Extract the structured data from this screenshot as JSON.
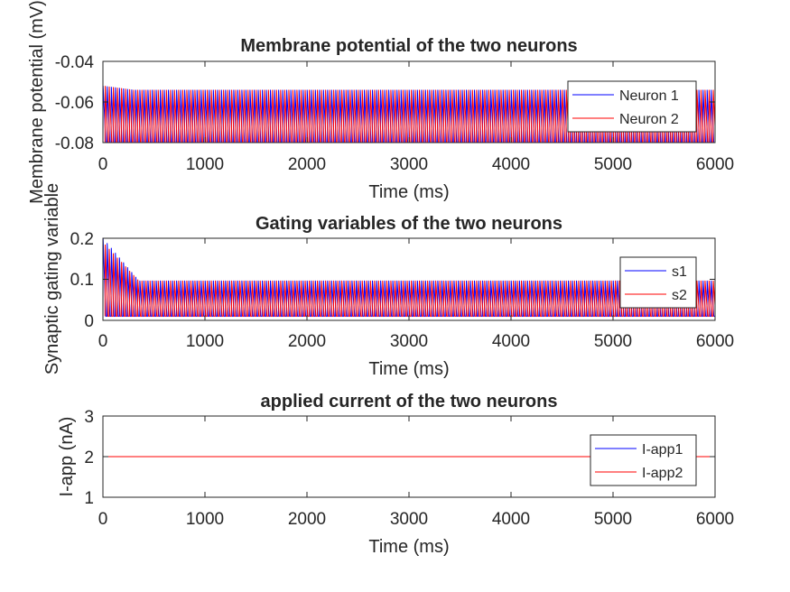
{
  "colors": {
    "series1": "#0000ff",
    "series2": "#ff0000",
    "axis": "#262626"
  },
  "chart_data": [
    {
      "type": "line",
      "title": "Membrane potential of the two neurons",
      "xlabel": "Time (ms)",
      "ylabel": "Membrane potential (mV)",
      "xlim": [
        0,
        6000
      ],
      "ylim": [
        -0.08,
        -0.04
      ],
      "xticks": [
        0,
        1000,
        2000,
        3000,
        4000,
        5000,
        6000
      ],
      "xtick_labels": [
        "0",
        "1000",
        "2000",
        "3000",
        "4000",
        "5000",
        "6000"
      ],
      "yticks": [
        -0.08,
        -0.06,
        -0.04
      ],
      "ytick_labels": [
        "-0.08",
        "-0.06",
        "-0.04"
      ],
      "grid": false,
      "legend_position": "top-right",
      "series": [
        {
          "name": "Neuron 1",
          "color": "#0000ff",
          "pattern": "oscillation",
          "period_ms": 40,
          "phase_ms": 0,
          "baseline": -0.08,
          "peak_initial": -0.052,
          "peak_steady": -0.054,
          "settle_ms": 300
        },
        {
          "name": "Neuron 2",
          "color": "#ff0000",
          "pattern": "oscillation",
          "period_ms": 40,
          "phase_ms": 20,
          "baseline": -0.08,
          "peak_initial": -0.052,
          "peak_steady": -0.054,
          "settle_ms": 300
        }
      ]
    },
    {
      "type": "line",
      "title": "Gating variables of the two neurons",
      "xlabel": "Time (ms)",
      "ylabel": "Synaptic gating variable",
      "xlim": [
        0,
        6000
      ],
      "ylim": [
        0,
        0.2
      ],
      "xticks": [
        0,
        1000,
        2000,
        3000,
        4000,
        5000,
        6000
      ],
      "xtick_labels": [
        "0",
        "1000",
        "2000",
        "3000",
        "4000",
        "5000",
        "6000"
      ],
      "yticks": [
        0,
        0.1,
        0.2
      ],
      "ytick_labels": [
        "0",
        "0.1",
        "0.2"
      ],
      "grid": false,
      "legend_position": "top-right",
      "series": [
        {
          "name": "s1",
          "color": "#0000ff",
          "pattern": "oscillation",
          "period_ms": 40,
          "phase_ms": 0,
          "baseline": 0.01,
          "peak_initial": 0.2,
          "peak_steady": 0.097,
          "settle_ms": 350
        },
        {
          "name": "s2",
          "color": "#ff0000",
          "pattern": "oscillation",
          "period_ms": 40,
          "phase_ms": 20,
          "baseline": 0.01,
          "peak_initial": 0.19,
          "peak_steady": 0.097,
          "settle_ms": 350
        }
      ]
    },
    {
      "type": "line",
      "title": "applied current of the two neurons",
      "xlabel": "Time (ms)",
      "ylabel": "I-app (nA)",
      "xlim": [
        0,
        6000
      ],
      "ylim": [
        1,
        3
      ],
      "xticks": [
        0,
        1000,
        2000,
        3000,
        4000,
        5000,
        6000
      ],
      "xtick_labels": [
        "0",
        "1000",
        "2000",
        "3000",
        "4000",
        "5000",
        "6000"
      ],
      "yticks": [
        1,
        2,
        3
      ],
      "ytick_labels": [
        "1",
        "2",
        "3"
      ],
      "grid": false,
      "legend_position": "top-right",
      "series": [
        {
          "name": "I-app1",
          "color": "#0000ff",
          "pattern": "constant",
          "x": [
            0,
            6000
          ],
          "values": [
            2,
            2
          ]
        },
        {
          "name": "I-app2",
          "color": "#ff0000",
          "pattern": "constant",
          "x": [
            0,
            6000
          ],
          "values": [
            2,
            2
          ]
        }
      ]
    }
  ]
}
